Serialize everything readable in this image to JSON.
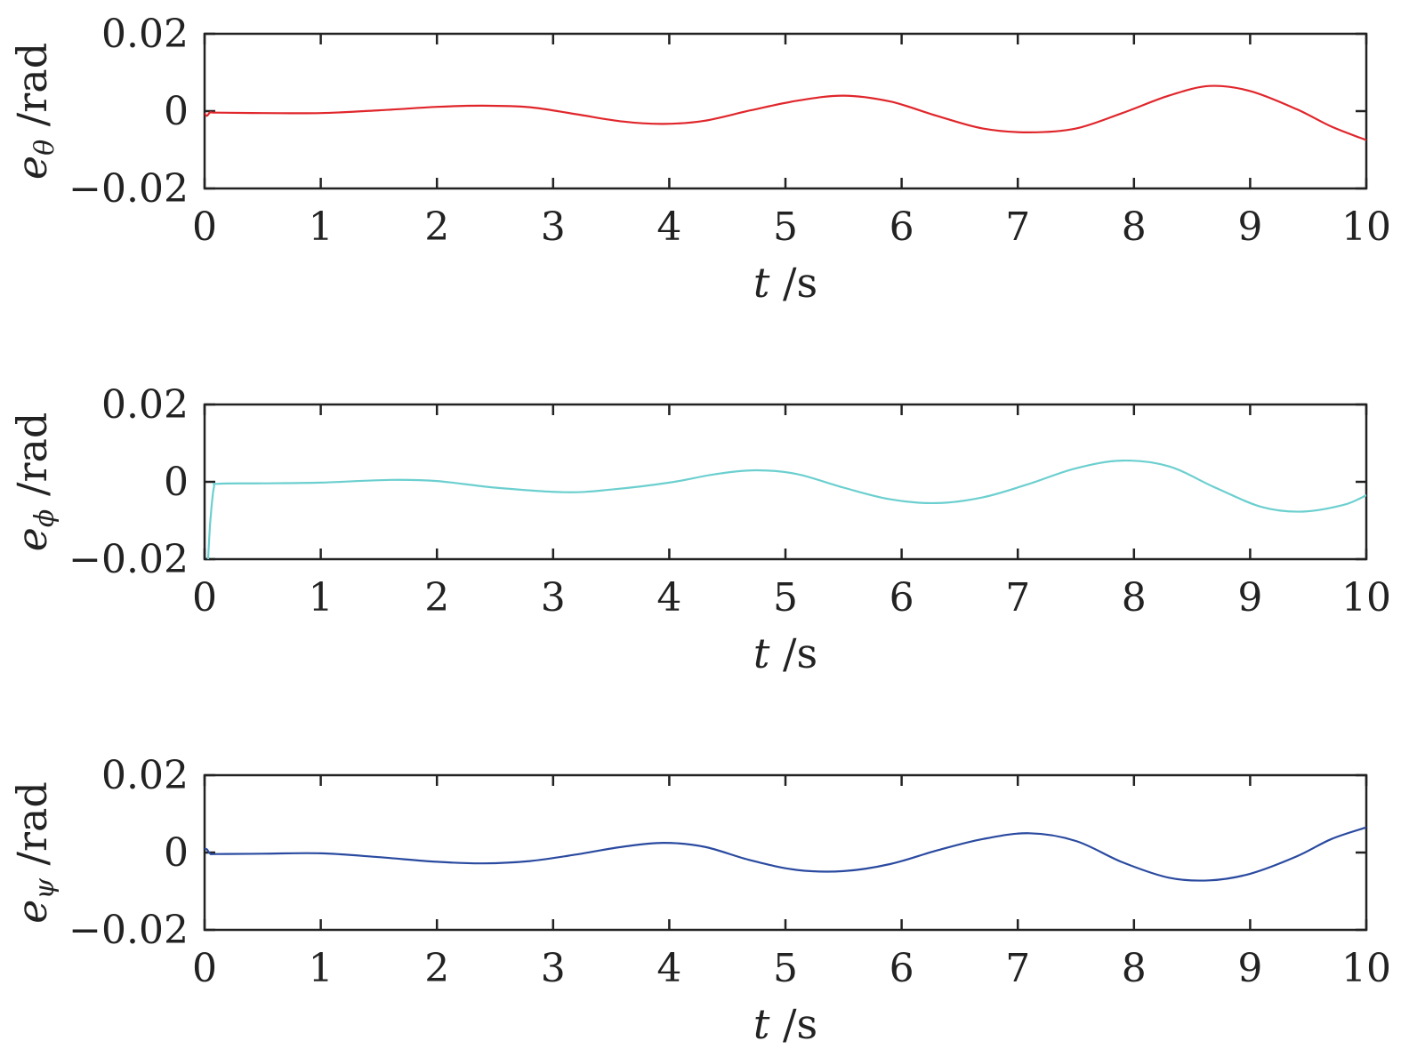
{
  "chart_data": [
    {
      "type": "line",
      "xlabel": "t /s",
      "ylabel": "e_θ /rad",
      "ylabel_base": "e",
      "ylabel_sub": "θ",
      "ylabel_unit": " /rad",
      "xlabel_var": "t",
      "xlabel_unit": " /s",
      "xlim": [
        0,
        10
      ],
      "ylim": [
        -0.02,
        0.02
      ],
      "xticks": [
        "0",
        "1",
        "2",
        "3",
        "4",
        "5",
        "6",
        "7",
        "8",
        "9",
        "10"
      ],
      "yticks": [
        "0.02",
        "0",
        "−0.02"
      ],
      "ytick_values": [
        0.02,
        0,
        -0.02
      ],
      "grid": false,
      "color": "#e0262b",
      "series": [
        {
          "x": [
            0,
            0.02,
            0.05,
            0.1,
            0.5,
            1.0,
            1.5,
            2.0,
            2.4,
            2.8,
            3.2,
            3.6,
            3.95,
            4.3,
            4.7,
            5.1,
            5.5,
            5.9,
            6.3,
            6.7,
            7.1,
            7.5,
            7.9,
            8.3,
            8.65,
            9.0,
            9.4,
            9.7,
            10.0
          ],
          "y": [
            -0.0005,
            -0.0012,
            -0.0003,
            -0.0004,
            -0.0005,
            -0.0005,
            0.0002,
            0.0011,
            0.0014,
            0.001,
            -0.0008,
            -0.0027,
            -0.0033,
            -0.0025,
            0.0002,
            0.0027,
            0.004,
            0.0025,
            -0.0012,
            -0.0045,
            -0.0055,
            -0.0045,
            -0.0005,
            0.004,
            0.0065,
            0.0052,
            0.0005,
            -0.004,
            -0.0075
          ]
        }
      ]
    },
    {
      "type": "line",
      "xlabel": "t /s",
      "ylabel": "e_ϕ /rad",
      "ylabel_base": "e",
      "ylabel_sub": "ϕ",
      "ylabel_unit": " /rad",
      "xlabel_var": "t",
      "xlabel_unit": " /s",
      "xlim": [
        0,
        10
      ],
      "ylim": [
        -0.02,
        0.02
      ],
      "xticks": [
        "0",
        "1",
        "2",
        "3",
        "4",
        "5",
        "6",
        "7",
        "8",
        "9",
        "10"
      ],
      "yticks": [
        "0.02",
        "0",
        "−0.02"
      ],
      "ytick_values": [
        0.02,
        0,
        -0.02
      ],
      "grid": false,
      "color": "#6ccfcf",
      "series": [
        {
          "x": [
            0.03,
            0.05,
            0.08,
            0.12,
            0.5,
            1.0,
            1.6,
            2.0,
            2.5,
            3.1,
            3.5,
            4.0,
            4.4,
            4.75,
            5.1,
            5.5,
            5.9,
            6.3,
            6.7,
            7.1,
            7.5,
            7.9,
            8.3,
            8.7,
            9.1,
            9.45,
            9.8,
            10.0
          ],
          "y": [
            -0.02,
            -0.01,
            -0.0015,
            -0.0005,
            -0.0004,
            -0.0002,
            0.0005,
            0.0002,
            -0.0015,
            -0.0027,
            -0.002,
            -0.0002,
            0.002,
            0.003,
            0.002,
            -0.0015,
            -0.0045,
            -0.0055,
            -0.004,
            -0.0005,
            0.0035,
            0.0055,
            0.004,
            -0.0015,
            -0.0065,
            -0.0077,
            -0.006,
            -0.0035
          ]
        }
      ]
    },
    {
      "type": "line",
      "xlabel": "t /s",
      "ylabel": "e_ψ /rad",
      "ylabel_base": "e",
      "ylabel_sub": "ψ",
      "ylabel_unit": " /rad",
      "xlabel_var": "t",
      "xlabel_unit": " /s",
      "xlim": [
        0,
        10
      ],
      "ylim": [
        -0.02,
        0.02
      ],
      "xticks": [
        "0",
        "1",
        "2",
        "3",
        "4",
        "5",
        "6",
        "7",
        "8",
        "9",
        "10"
      ],
      "yticks": [
        "0.02",
        "0",
        "−0.02"
      ],
      "ytick_values": [
        0.02,
        0,
        -0.02
      ],
      "grid": false,
      "color": "#2a4aa0",
      "series": [
        {
          "x": [
            0,
            0.02,
            0.05,
            0.1,
            0.5,
            1.0,
            1.5,
            2.0,
            2.4,
            2.8,
            3.2,
            3.6,
            3.95,
            4.3,
            4.7,
            5.1,
            5.5,
            5.9,
            6.3,
            6.7,
            7.1,
            7.5,
            7.9,
            8.3,
            8.65,
            9.0,
            9.4,
            9.7,
            10.0
          ],
          "y": [
            0.001,
            0.0008,
            -0.0003,
            -0.0004,
            -0.0003,
            -0.0002,
            -0.0012,
            -0.0024,
            -0.0028,
            -0.0022,
            -0.0005,
            0.0015,
            0.0025,
            0.0015,
            -0.002,
            -0.0045,
            -0.0048,
            -0.003,
            0.0005,
            0.0035,
            0.005,
            0.003,
            -0.0025,
            -0.0065,
            -0.0072,
            -0.0055,
            -0.001,
            0.0035,
            0.0065
          ]
        }
      ]
    }
  ]
}
